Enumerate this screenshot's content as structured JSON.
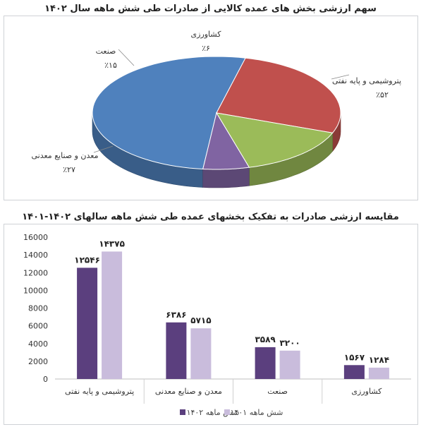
{
  "chart_data": [
    {
      "type": "pie",
      "title": "سهم ارزشی بخش های عمده کالایی از صادرات طی شش ماهه سال ۱۴۰۲",
      "slices": [
        {
          "label": "پتروشیمی و پایه نفتی",
          "value_text": "٪۵۲",
          "value": 52,
          "color": "#4f81bd"
        },
        {
          "label": "معدن و صنایع معدنی",
          "value_text": "٪۲۷",
          "value": 27,
          "color": "#c0504d"
        },
        {
          "label": "صنعت",
          "value_text": "٪۱۵",
          "value": 15,
          "color": "#9bbb59"
        },
        {
          "label": "کشاورزی",
          "value_text": "٪۶",
          "value": 6,
          "color": "#8064a2"
        }
      ]
    },
    {
      "type": "bar",
      "title": "مقایسه ارزشی صادرات به تفکیک بخشهای عمده طی شش ماهه سالهای ۱۴۰۲-۱۴۰۱",
      "categories": [
        "پتروشیمی و پایه نفتی",
        "معدن و صنایع معدنی",
        "صنعت",
        "کشاورزی"
      ],
      "series": [
        {
          "name": "شش ماهه ۱۴۰۲",
          "values": [
            12546,
            6386,
            3589,
            1567
          ],
          "labels": [
            "۱۲۵۴۶",
            "۶۳۸۶",
            "۳۵۸۹",
            "۱۵۶۷"
          ],
          "color": "#5b3f7e"
        },
        {
          "name": "شش ماهه ۱۴۰۱",
          "values": [
            14375,
            5715,
            3200,
            1284
          ],
          "labels": [
            "۱۴۳۷۵",
            "۵۷۱۵",
            "۳۲۰۰",
            "۱۲۸۴"
          ],
          "color": "#c9bcdc"
        }
      ],
      "yticks": [
        "0",
        "2000",
        "4000",
        "6000",
        "8000",
        "10000",
        "12000",
        "14000",
        "16000"
      ],
      "ylim": [
        0,
        16000
      ],
      "grid": false,
      "legend_position": "bottom"
    }
  ]
}
